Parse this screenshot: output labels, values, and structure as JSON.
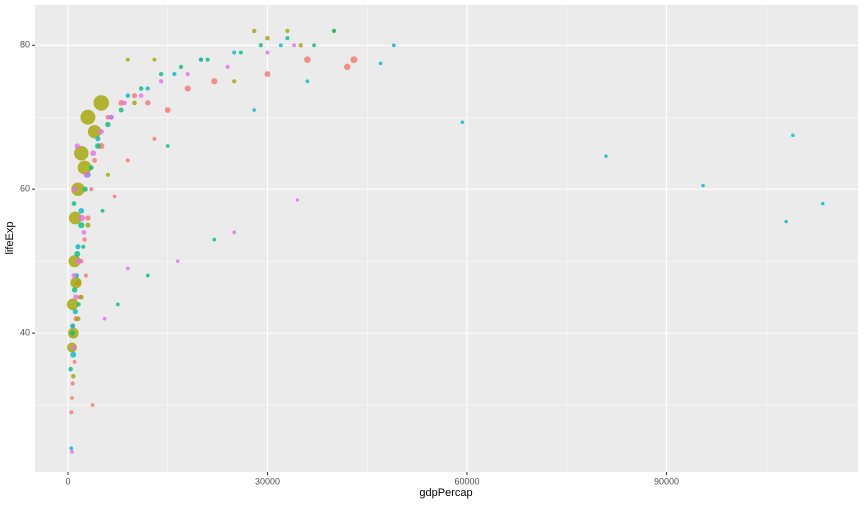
{
  "chart_data": {
    "type": "scatter",
    "x_label": "gdpPercap",
    "y_label": "lifeExp",
    "xlim": [
      -4960,
      118800
    ],
    "ylim": [
      20.7,
      85.6
    ],
    "xticks": [
      0,
      30000,
      60000,
      90000
    ],
    "yticks": [
      40,
      60,
      80
    ],
    "grid": true,
    "series": [
      {
        "color": "#F8766D",
        "x": [
          500,
          700,
          900,
          1200,
          1500,
          2000,
          2500,
          3000,
          3500,
          4000,
          5000,
          6000,
          8000,
          10000,
          12000,
          15000,
          18000,
          22000,
          30000,
          36000,
          42000,
          43000,
          1000,
          1800,
          2700,
          800,
          600,
          13000,
          9000,
          3700,
          7000
        ],
        "values": [
          29,
          33,
          38,
          42,
          47,
          50,
          53,
          56,
          60,
          64,
          66,
          70,
          72,
          73,
          72,
          71,
          74,
          75,
          76,
          78,
          77,
          78,
          36,
          45,
          48,
          41,
          31,
          67,
          64,
          30,
          59
        ],
        "sizes": [
          5,
          10,
          20,
          30,
          60,
          15,
          12,
          40,
          8,
          25,
          80,
          18,
          50,
          30,
          40,
          60,
          70,
          80,
          60,
          100,
          90,
          120,
          4,
          10,
          6,
          3,
          2,
          8,
          5,
          3,
          2
        ]
      },
      {
        "color": "#A3A500",
        "x": [
          700,
          1000,
          1500,
          2000,
          800,
          1200,
          3000,
          600,
          1100,
          2500,
          5000,
          4000,
          10000,
          20000,
          30000,
          40000,
          9000,
          3000,
          2000,
          6000,
          13000,
          35000,
          25000,
          1500,
          800,
          28000,
          33000
        ],
        "values": [
          44,
          50,
          60,
          65,
          40,
          47,
          70,
          38,
          56,
          63,
          72,
          68,
          72,
          78,
          81,
          82,
          78,
          55,
          45,
          62,
          78,
          80,
          75,
          42,
          34,
          82,
          82
        ],
        "sizes": [
          600,
          700,
          900,
          1100,
          500,
          550,
          1200,
          400,
          800,
          1000,
          1300,
          900,
          20,
          10,
          15,
          10,
          5,
          30,
          20,
          8,
          5,
          12,
          8,
          25,
          15,
          12,
          8
        ]
      },
      {
        "color": "#00BF7D",
        "x": [
          400,
          700,
          1000,
          1400,
          2000,
          2600,
          3500,
          4500,
          6000,
          8000,
          11000,
          14000,
          17000,
          21000,
          26000,
          29000,
          33000,
          37000,
          40000,
          12000,
          15000,
          22000,
          900,
          1600,
          2300,
          5200,
          7500
        ],
        "values": [
          35,
          40,
          46,
          51,
          55,
          60,
          63,
          66,
          69,
          71,
          74,
          76,
          77,
          78,
          79,
          80,
          81,
          80,
          82,
          48,
          66,
          53,
          58,
          44,
          52,
          57,
          44
        ],
        "sizes": [
          15,
          25,
          40,
          60,
          80,
          30,
          20,
          50,
          40,
          25,
          15,
          10,
          12,
          8,
          6,
          10,
          5,
          4,
          3,
          3,
          3,
          2,
          20,
          10,
          6,
          4,
          3
        ]
      },
      {
        "color": "#00B8C8",
        "x": [
          113500,
          108000,
          109000,
          95500,
          80900,
          59300,
          47000,
          49000,
          500,
          800,
          1100,
          1500,
          2000,
          3000,
          4500,
          6500,
          9000,
          12000,
          16000,
          20000,
          25000,
          32000,
          36000,
          700,
          1300,
          28000
        ],
        "values": [
          58,
          55.5,
          67.5,
          60.5,
          64.6,
          69.3,
          77.5,
          80,
          24,
          37,
          43,
          52,
          57,
          62,
          67,
          70,
          73,
          74,
          76,
          78,
          79,
          80,
          75,
          41,
          48,
          71
        ],
        "sizes": [
          1,
          1,
          1,
          1,
          1,
          1,
          2,
          3,
          3,
          60,
          40,
          30,
          50,
          40,
          30,
          20,
          15,
          10,
          8,
          6,
          5,
          4,
          3,
          25,
          20,
          2
        ]
      },
      {
        "color": "#E76BF3",
        "x": [
          600,
          900,
          1200,
          1600,
          2100,
          2800,
          3800,
          5000,
          6500,
          8500,
          11000,
          14000,
          18000,
          24000,
          30000,
          34000,
          1000,
          1400,
          2400,
          9000,
          25000,
          34500,
          900,
          5500,
          16500
        ],
        "values": [
          23.5,
          38,
          45,
          50,
          56,
          62,
          65,
          68,
          70,
          72,
          73,
          75,
          76,
          77,
          79,
          80,
          60,
          66,
          54,
          49,
          54,
          58.5,
          48,
          42,
          50
        ],
        "sizes": [
          3,
          20,
          40,
          60,
          80,
          70,
          50,
          40,
          30,
          20,
          15,
          12,
          10,
          8,
          6,
          5,
          30,
          40,
          20,
          3,
          2,
          1,
          25,
          3,
          2
        ]
      }
    ]
  }
}
